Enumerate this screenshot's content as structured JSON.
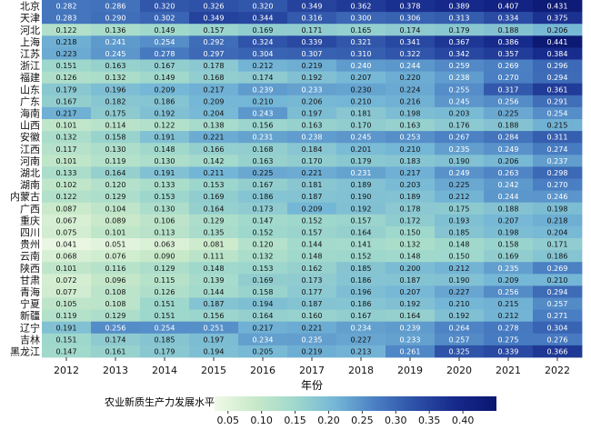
{
  "chart_data": {
    "type": "heatmap",
    "title": "",
    "xlabel": "年份",
    "ylabel": "",
    "colorbar_title": "农业新质生产力发展水平",
    "colorbar_ticks": [
      "0.05",
      "0.10",
      "0.15",
      "0.20",
      "0.25",
      "0.30",
      "0.35",
      "0.40"
    ],
    "colorbar_range": [
      0.03,
      0.45
    ],
    "colors": [
      "#f0f9e8",
      "#c8e9c9",
      "#9fd8cc",
      "#74b6d6",
      "#4a7fc3",
      "#2c4fa6",
      "#16288a",
      "#0a1770"
    ],
    "years": [
      "2012",
      "2013",
      "2014",
      "2015",
      "2016",
      "2017",
      "2018",
      "2019",
      "2020",
      "2021",
      "2022"
    ],
    "provinces": [
      "北京",
      "天津",
      "河北",
      "上海",
      "江苏",
      "浙江",
      "福建",
      "山东",
      "广东",
      "海南",
      "山西",
      "安徽",
      "江西",
      "河南",
      "湖北",
      "湖南",
      "内蒙古",
      "广西",
      "重庆",
      "四川",
      "贵州",
      "云南",
      "陕西",
      "甘肃",
      "青海",
      "宁夏",
      "新疆",
      "辽宁",
      "吉林",
      "黑龙江"
    ],
    "values": [
      [
        "0.282",
        "0.286",
        "0.320",
        "0.326",
        "0.320",
        "0.349",
        "0.362",
        "0.378",
        "0.389",
        "0.407",
        "0.431"
      ],
      [
        "0.283",
        "0.290",
        "0.302",
        "0.349",
        "0.344",
        "0.316",
        "0.300",
        "0.306",
        "0.313",
        "0.334",
        "0.375"
      ],
      [
        "0.122",
        "0.136",
        "0.149",
        "0.157",
        "0.169",
        "0.171",
        "0.165",
        "0.174",
        "0.179",
        "0.188",
        "0.206"
      ],
      [
        "0.218",
        "0.241",
        "0.254",
        "0.292",
        "0.324",
        "0.339",
        "0.321",
        "0.341",
        "0.367",
        "0.386",
        "0.441"
      ],
      [
        "0.223",
        "0.245",
        "0.278",
        "0.297",
        "0.304",
        "0.307",
        "0.310",
        "0.322",
        "0.342",
        "0.357",
        "0.384"
      ],
      [
        "0.151",
        "0.163",
        "0.167",
        "0.178",
        "0.212",
        "0.219",
        "0.240",
        "0.244",
        "0.259",
        "0.269",
        "0.296"
      ],
      [
        "0.126",
        "0.132",
        "0.149",
        "0.168",
        "0.174",
        "0.192",
        "0.207",
        "0.220",
        "0.238",
        "0.270",
        "0.294"
      ],
      [
        "0.179",
        "0.196",
        "0.209",
        "0.217",
        "0.239",
        "0.233",
        "0.230",
        "0.224",
        "0.255",
        "0.317",
        "0.361"
      ],
      [
        "0.167",
        "0.182",
        "0.186",
        "0.209",
        "0.210",
        "0.206",
        "0.210",
        "0.216",
        "0.245",
        "0.256",
        "0.291"
      ],
      [
        "0.217",
        "0.175",
        "0.192",
        "0.204",
        "0.243",
        "0.197",
        "0.181",
        "0.198",
        "0.203",
        "0.225",
        "0.254"
      ],
      [
        "0.101",
        "0.114",
        "0.122",
        "0.138",
        "0.156",
        "0.163",
        "0.170",
        "0.163",
        "0.176",
        "0.188",
        "0.215"
      ],
      [
        "0.132",
        "0.158",
        "0.191",
        "0.221",
        "0.231",
        "0.238",
        "0.245",
        "0.253",
        "0.267",
        "0.284",
        "0.311"
      ],
      [
        "0.117",
        "0.130",
        "0.148",
        "0.166",
        "0.168",
        "0.184",
        "0.201",
        "0.210",
        "0.235",
        "0.249",
        "0.274"
      ],
      [
        "0.101",
        "0.119",
        "0.130",
        "0.142",
        "0.163",
        "0.170",
        "0.179",
        "0.183",
        "0.190",
        "0.206",
        "0.237"
      ],
      [
        "0.133",
        "0.164",
        "0.191",
        "0.211",
        "0.225",
        "0.221",
        "0.231",
        "0.217",
        "0.249",
        "0.263",
        "0.298"
      ],
      [
        "0.102",
        "0.120",
        "0.133",
        "0.153",
        "0.167",
        "0.181",
        "0.189",
        "0.203",
        "0.225",
        "0.242",
        "0.270"
      ],
      [
        "0.122",
        "0.129",
        "0.153",
        "0.169",
        "0.186",
        "0.187",
        "0.190",
        "0.189",
        "0.212",
        "0.244",
        "0.246"
      ],
      [
        "0.087",
        "0.104",
        "0.130",
        "0.164",
        "0.173",
        "0.209",
        "0.192",
        "0.178",
        "0.175",
        "0.188",
        "0.198"
      ],
      [
        "0.067",
        "0.089",
        "0.106",
        "0.129",
        "0.147",
        "0.152",
        "0.157",
        "0.172",
        "0.193",
        "0.207",
        "0.218"
      ],
      [
        "0.075",
        "0.101",
        "0.113",
        "0.135",
        "0.152",
        "0.157",
        "0.164",
        "0.150",
        "0.185",
        "0.198",
        "0.204"
      ],
      [
        "0.041",
        "0.051",
        "0.063",
        "0.081",
        "0.120",
        "0.144",
        "0.141",
        "0.132",
        "0.148",
        "0.158",
        "0.171"
      ],
      [
        "0.068",
        "0.076",
        "0.090",
        "0.111",
        "0.132",
        "0.148",
        "0.152",
        "0.148",
        "0.150",
        "0.169",
        "0.186"
      ],
      [
        "0.101",
        "0.116",
        "0.129",
        "0.148",
        "0.153",
        "0.162",
        "0.185",
        "0.200",
        "0.212",
        "0.235",
        "0.269"
      ],
      [
        "0.072",
        "0.096",
        "0.115",
        "0.139",
        "0.169",
        "0.173",
        "0.186",
        "0.187",
        "0.190",
        "0.209",
        "0.210"
      ],
      [
        "0.077",
        "0.108",
        "0.126",
        "0.144",
        "0.158",
        "0.177",
        "0.196",
        "0.207",
        "0.227",
        "0.256",
        "0.294"
      ],
      [
        "0.105",
        "0.108",
        "0.151",
        "0.187",
        "0.194",
        "0.187",
        "0.186",
        "0.192",
        "0.210",
        "0.215",
        "0.257"
      ],
      [
        "0.119",
        "0.129",
        "0.151",
        "0.156",
        "0.164",
        "0.160",
        "0.167",
        "0.164",
        "0.192",
        "0.212",
        "0.271"
      ],
      [
        "0.191",
        "0.256",
        "0.254",
        "0.251",
        "0.217",
        "0.221",
        "0.234",
        "0.239",
        "0.264",
        "0.278",
        "0.304"
      ],
      [
        "0.151",
        "0.174",
        "0.185",
        "0.197",
        "0.234",
        "0.235",
        "0.227",
        "0.233",
        "0.257",
        "0.275",
        "0.276"
      ],
      [
        "0.147",
        "0.161",
        "0.179",
        "0.194",
        "0.205",
        "0.219",
        "0.213",
        "0.261",
        "0.325",
        "0.339",
        "0.366"
      ]
    ]
  }
}
